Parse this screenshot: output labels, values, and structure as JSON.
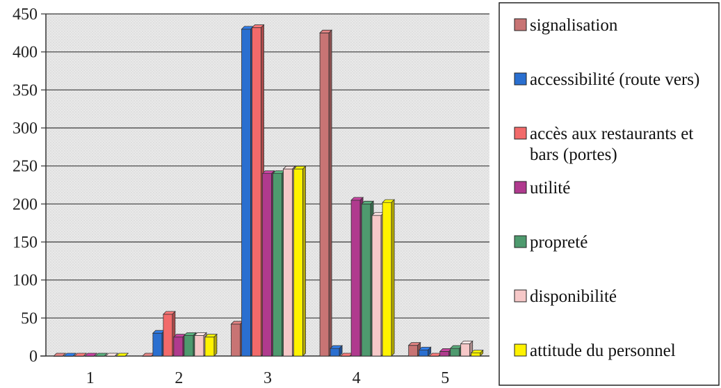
{
  "chart_data": {
    "type": "bar",
    "title": "",
    "xlabel": "",
    "ylabel": "",
    "categories": [
      "1",
      "2",
      "3",
      "4",
      "5"
    ],
    "ylim": [
      0,
      450
    ],
    "yticks": [
      "0",
      "50",
      "100",
      "150",
      "200",
      "250",
      "300",
      "350",
      "400",
      "450"
    ],
    "grid": true,
    "legend_position": "right",
    "series": [
      {
        "name": "signalisation",
        "color": "#c87474",
        "values": [
          0,
          0,
          42,
          425,
          14
        ]
      },
      {
        "name": "accessibilité (route vers)",
        "color": "#2a6fd0",
        "values": [
          0,
          30,
          430,
          10,
          8
        ]
      },
      {
        "name": "accès aux restaurants et bars (portes)",
        "color": "#f26a6a",
        "values": [
          0,
          55,
          432,
          0,
          0
        ]
      },
      {
        "name": "utilité",
        "color": "#b03a8e",
        "values": [
          0,
          25,
          240,
          205,
          6
        ]
      },
      {
        "name": "propreté",
        "color": "#4e9a6e",
        "values": [
          0,
          27,
          240,
          200,
          10
        ]
      },
      {
        "name": "disponibilité",
        "color": "#f6c8c8",
        "values": [
          0,
          27,
          246,
          185,
          16
        ]
      },
      {
        "name": "attitude du personnel",
        "color": "#fff200",
        "values": [
          0,
          25,
          246,
          202,
          4
        ]
      }
    ]
  }
}
